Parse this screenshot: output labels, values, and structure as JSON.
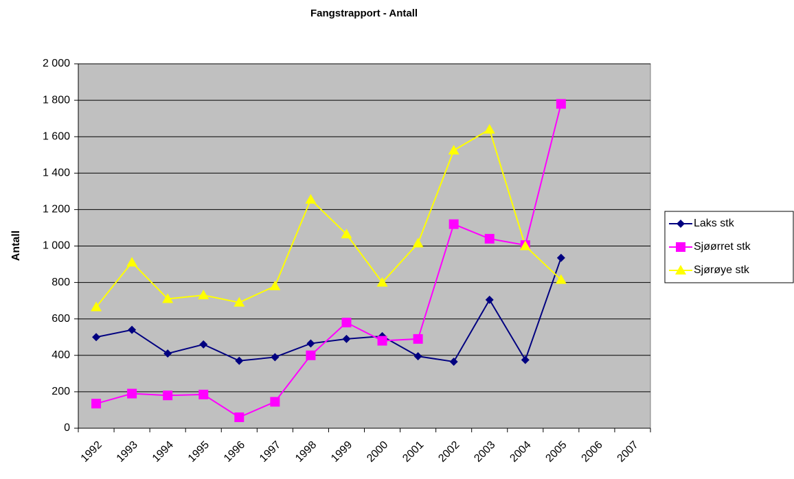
{
  "chart_data": {
    "type": "line",
    "title": "Fangstrapport - Antall",
    "ylabel": "Antall",
    "categories": [
      "1992",
      "1993",
      "1994",
      "1995",
      "1996",
      "1997",
      "1998",
      "1999",
      "2000",
      "2001",
      "2002",
      "2003",
      "2004",
      "2005",
      "2006",
      "2007"
    ],
    "series": [
      {
        "name": "Laks stk",
        "color": "#000080",
        "marker": "diamond",
        "values": [
          500,
          540,
          410,
          460,
          370,
          390,
          465,
          490,
          505,
          395,
          365,
          705,
          375,
          935,
          null,
          null
        ]
      },
      {
        "name": "Sjøørret stk",
        "color": "#ff00ff",
        "marker": "square",
        "values": [
          135,
          190,
          180,
          185,
          60,
          145,
          400,
          580,
          480,
          490,
          1120,
          1040,
          1005,
          1780,
          null,
          null
        ]
      },
      {
        "name": "Sjørøye stk",
        "color": "#ffff00",
        "marker": "triangle",
        "values": [
          665,
          910,
          710,
          730,
          690,
          780,
          1255,
          1065,
          800,
          1015,
          1525,
          1640,
          1000,
          815,
          null,
          null
        ]
      }
    ],
    "ylim": [
      0,
      2000
    ],
    "yticks": [
      0,
      200,
      400,
      600,
      800,
      {
        "value": 1000,
        "label": "1 000"
      },
      {
        "value": 1200,
        "label": "1 200"
      },
      {
        "value": 1400,
        "label": "1 400"
      },
      {
        "value": 1600,
        "label": "1 600"
      },
      {
        "value": 1800,
        "label": "1 800"
      },
      {
        "value": 2000,
        "label": "2 000"
      }
    ],
    "grid": true,
    "legend": "right"
  }
}
